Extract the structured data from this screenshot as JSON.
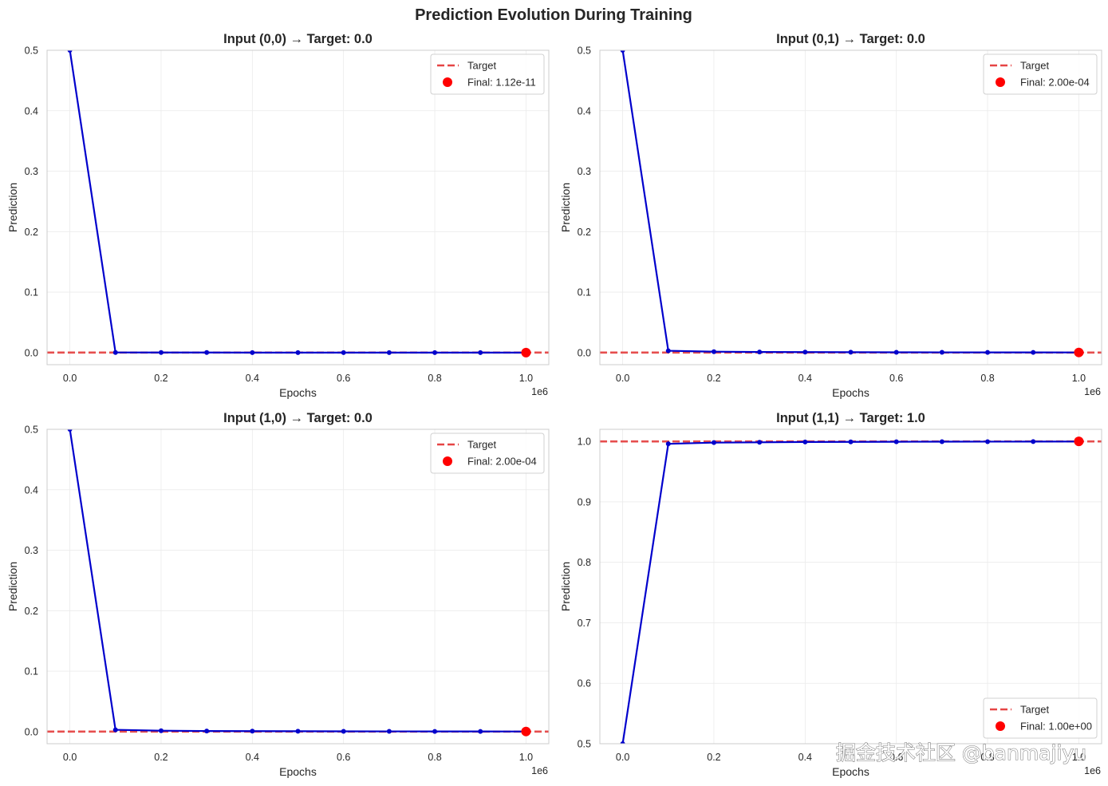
{
  "figure_title": "Prediction Evolution During Training",
  "watermark": "掘金技术社区 @banmajiyu",
  "colors": {
    "line": "#0000cc",
    "target": "#e64545",
    "final": "#ff0000",
    "grid": "#ebebeb",
    "spine": "#cccccc"
  },
  "chart_data": [
    {
      "type": "line",
      "title": "Input (0,0) → Target: 0.0",
      "xlabel": "Epochs",
      "ylabel": "Prediction",
      "x_offset_label": "1e6",
      "x_ticks": [
        0,
        0.2,
        0.4,
        0.6,
        0.8,
        1.0
      ],
      "x_tick_labels": [
        "0.0",
        "0.2",
        "0.4",
        "0.6",
        "0.8",
        "1.0"
      ],
      "y_ticks": [
        0,
        0.1,
        0.2,
        0.3,
        0.4,
        0.5
      ],
      "y_tick_labels": [
        "0.0",
        "0.1",
        "0.2",
        "0.3",
        "0.4",
        "0.5"
      ],
      "xlim": [
        -0.05,
        1.05
      ],
      "ylim": [
        -0.02,
        0.5
      ],
      "target": 0.0,
      "x": [
        0,
        0.1,
        0.2,
        0.3,
        0.4,
        0.5,
        0.6,
        0.7,
        0.8,
        0.9,
        1.0
      ],
      "y": [
        0.5,
        0.0002,
        0.0001,
        0.0001,
        0.0,
        0.0,
        0.0,
        0.0,
        0.0,
        0.0,
        0.0
      ],
      "final": {
        "x": 1.0,
        "y": 0.0
      },
      "legend": {
        "position": "upper right",
        "target_label": "Target",
        "final_label": "Final: 1.12e-11"
      },
      "grid": true
    },
    {
      "type": "line",
      "title": "Input (0,1) → Target: 0.0",
      "xlabel": "Epochs",
      "ylabel": "Prediction",
      "x_offset_label": "1e6",
      "x_ticks": [
        0,
        0.2,
        0.4,
        0.6,
        0.8,
        1.0
      ],
      "x_tick_labels": [
        "0.0",
        "0.2",
        "0.4",
        "0.6",
        "0.8",
        "1.0"
      ],
      "y_ticks": [
        0,
        0.1,
        0.2,
        0.3,
        0.4,
        0.5
      ],
      "y_tick_labels": [
        "0.0",
        "0.1",
        "0.2",
        "0.3",
        "0.4",
        "0.5"
      ],
      "xlim": [
        -0.05,
        1.05
      ],
      "ylim": [
        -0.02,
        0.5
      ],
      "target": 0.0,
      "x": [
        0,
        0.1,
        0.2,
        0.3,
        0.4,
        0.5,
        0.6,
        0.7,
        0.8,
        0.9,
        1.0
      ],
      "y": [
        0.5,
        0.003,
        0.0015,
        0.001,
        0.0008,
        0.0006,
        0.0005,
        0.0004,
        0.0003,
        0.00025,
        0.0002
      ],
      "final": {
        "x": 1.0,
        "y": 0.0002
      },
      "legend": {
        "position": "upper right",
        "target_label": "Target",
        "final_label": "Final: 2.00e-04"
      },
      "grid": true
    },
    {
      "type": "line",
      "title": "Input (1,0) → Target: 0.0",
      "xlabel": "Epochs",
      "ylabel": "Prediction",
      "x_offset_label": "1e6",
      "x_ticks": [
        0,
        0.2,
        0.4,
        0.6,
        0.8,
        1.0
      ],
      "x_tick_labels": [
        "0.0",
        "0.2",
        "0.4",
        "0.6",
        "0.8",
        "1.0"
      ],
      "y_ticks": [
        0,
        0.1,
        0.2,
        0.3,
        0.4,
        0.5
      ],
      "y_tick_labels": [
        "0.0",
        "0.1",
        "0.2",
        "0.3",
        "0.4",
        "0.5"
      ],
      "xlim": [
        -0.05,
        1.05
      ],
      "ylim": [
        -0.02,
        0.5
      ],
      "target": 0.0,
      "x": [
        0,
        0.1,
        0.2,
        0.3,
        0.4,
        0.5,
        0.6,
        0.7,
        0.8,
        0.9,
        1.0
      ],
      "y": [
        0.5,
        0.003,
        0.0015,
        0.001,
        0.0008,
        0.0006,
        0.0005,
        0.0004,
        0.0003,
        0.00025,
        0.0002
      ],
      "final": {
        "x": 1.0,
        "y": 0.0002
      },
      "legend": {
        "position": "upper right",
        "target_label": "Target",
        "final_label": "Final: 2.00e-04"
      },
      "grid": true
    },
    {
      "type": "line",
      "title": "Input (1,1) → Target: 1.0",
      "xlabel": "Epochs",
      "ylabel": "Prediction",
      "x_offset_label": "1e6",
      "x_ticks": [
        0,
        0.2,
        0.4,
        0.6,
        0.8,
        1.0
      ],
      "x_tick_labels": [
        "0.0",
        "0.2",
        "0.4",
        "0.6",
        "0.8",
        "1.0"
      ],
      "y_ticks": [
        0.5,
        0.6,
        0.7,
        0.8,
        0.9,
        1.0
      ],
      "y_tick_labels": [
        "0.5",
        "0.6",
        "0.7",
        "0.8",
        "0.9",
        "1.0"
      ],
      "xlim": [
        -0.05,
        1.05
      ],
      "ylim": [
        0.5,
        1.02
      ],
      "target": 1.0,
      "x": [
        0,
        0.1,
        0.2,
        0.3,
        0.4,
        0.5,
        0.6,
        0.7,
        0.8,
        0.9,
        1.0
      ],
      "y": [
        0.5,
        0.996,
        0.998,
        0.9985,
        0.999,
        0.9992,
        0.9994,
        0.9995,
        0.9996,
        0.9997,
        0.9998
      ],
      "final": {
        "x": 1.0,
        "y": 1.0
      },
      "legend": {
        "position": "lower right",
        "target_label": "Target",
        "final_label": "Final: 1.00e+00"
      },
      "grid": true
    }
  ]
}
